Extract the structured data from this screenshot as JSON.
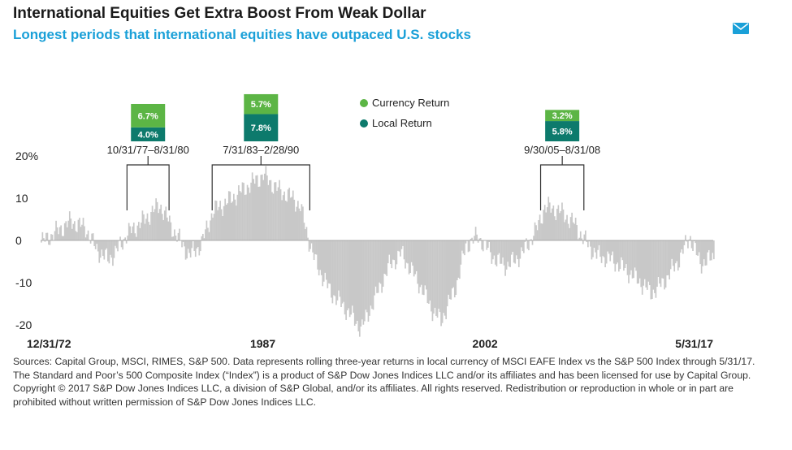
{
  "header": {
    "title": "International Equities Get Extra Boost From Weak Dollar",
    "subtitle": "Longest periods that international equities have outpaced U.S. stocks",
    "mail_icon": "mail-icon"
  },
  "colors": {
    "bars": "#c8c8c8",
    "currency": "#5cb545",
    "local": "#0d7a6c",
    "subtitle": "#1aa0d8",
    "icon": "#1aa0d8"
  },
  "chart_data": {
    "type": "bar",
    "ylim": [
      -20,
      20
    ],
    "yticks": [
      "20%",
      "10",
      "0",
      "-10",
      "-20"
    ],
    "xlabels": [
      {
        "label": "12/31/72",
        "year": 1972.0
      },
      {
        "label": "1987",
        "year": 1987.0
      },
      {
        "label": "2002",
        "year": 2002.0
      },
      {
        "label": "5/31/17",
        "year": 2017.4
      }
    ],
    "series_anchors": [
      [
        1972.0,
        -0.5
      ],
      [
        1973.0,
        2.0
      ],
      [
        1974.0,
        4.5
      ],
      [
        1975.0,
        3.0
      ],
      [
        1975.7,
        -2.0
      ],
      [
        1976.5,
        -4.5
      ],
      [
        1977.0,
        -3.0
      ],
      [
        1977.8,
        1.5
      ],
      [
        1979.0,
        5.0
      ],
      [
        1980.0,
        8.5
      ],
      [
        1981.0,
        2.0
      ],
      [
        1982.0,
        -3.5
      ],
      [
        1982.8,
        -1.0
      ],
      [
        1983.6,
        7.0
      ],
      [
        1984.5,
        9.0
      ],
      [
        1986.0,
        13.0
      ],
      [
        1987.0,
        15.5
      ],
      [
        1988.0,
        12.0
      ],
      [
        1989.0,
        10.0
      ],
      [
        1989.5,
        8.0
      ],
      [
        1990.0,
        1.0
      ],
      [
        1990.5,
        -5.0
      ],
      [
        1991.5,
        -12.0
      ],
      [
        1993.0,
        -18.0
      ],
      [
        1993.6,
        -21.0
      ],
      [
        1994.5,
        -14.0
      ],
      [
        1995.5,
        -6.0
      ],
      [
        1996.3,
        -3.0
      ],
      [
        1997.5,
        -10.0
      ],
      [
        1998.5,
        -17.0
      ],
      [
        1999.0,
        -19.0
      ],
      [
        2000.0,
        -11.0
      ],
      [
        2000.7,
        -1.0
      ],
      [
        2001.5,
        1.0
      ],
      [
        2002.0,
        -1.5
      ],
      [
        2002.8,
        -5.0
      ],
      [
        2003.5,
        -6.0
      ],
      [
        2004.5,
        -3.0
      ],
      [
        2005.5,
        3.0
      ],
      [
        2006.0,
        8.0
      ],
      [
        2007.0,
        7.0
      ],
      [
        2008.0,
        4.0
      ],
      [
        2008.6,
        0.5
      ],
      [
        2009.5,
        -3.5
      ],
      [
        2010.5,
        -4.5
      ],
      [
        2011.5,
        -7.0
      ],
      [
        2012.5,
        -10.0
      ],
      [
        2013.2,
        -12.5
      ],
      [
        2014.0,
        -10.0
      ],
      [
        2015.0,
        -5.0
      ],
      [
        2015.8,
        1.0
      ],
      [
        2016.5,
        -5.5
      ],
      [
        2017.4,
        -4.0
      ]
    ],
    "periods": [
      {
        "label": "10/31/77–8/31/80",
        "start": 1977.83,
        "end": 1980.67,
        "currency": 6.7,
        "local": 4.0,
        "currency_label": "6.7%",
        "local_label": "4.0%"
      },
      {
        "label": "7/31/83–2/28/90",
        "start": 1983.58,
        "end": 1990.17,
        "currency": 5.7,
        "local": 7.8,
        "currency_label": "5.7%",
        "local_label": "7.8%"
      },
      {
        "label": "9/30/05–8/31/08",
        "start": 2005.75,
        "end": 2008.67,
        "currency": 3.2,
        "local": 5.8,
        "currency_label": "3.2%",
        "local_label": "5.8%"
      }
    ],
    "legend": {
      "position": "top-center",
      "items": [
        {
          "name": "Currency Return",
          "color": "#5cb545"
        },
        {
          "name": "Local Return",
          "color": "#0d7a6c"
        }
      ]
    }
  },
  "footer": {
    "sources": "Sources: Capital Group, MSCI, RIMES, S&P 500. Data represents rolling three-year returns in local currency of MSCI EAFE Index vs the S&P 500 Index through 5/31/17. The Standard and Poor’s 500 Composite Index (“Index”) is a product of S&P Dow Jones Indices LLC and/or its affiliates and has been licensed for use by Capital Group. Copyright © 2017 S&P Dow Jones Indices LLC, a division of S&P Global, and/or its affiliates. All rights reserved. Redistribution or reproduction in whole or in part are prohibited without written permission of S&P Dow Jones Indices LLC."
  }
}
